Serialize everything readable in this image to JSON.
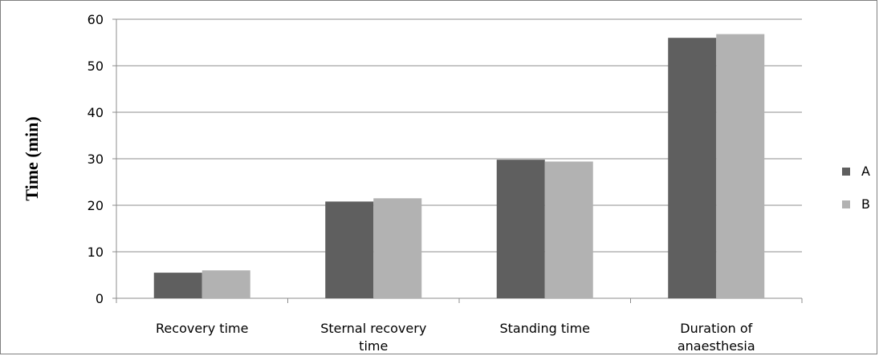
{
  "chart_data": {
    "type": "bar",
    "title": "",
    "xlabel": "",
    "ylabel": "Time (min)",
    "ylim": [
      0,
      60
    ],
    "yticks": [
      0,
      10,
      20,
      30,
      40,
      50,
      60
    ],
    "grid": true,
    "legend_position": "right",
    "categories": [
      [
        "Recovery time"
      ],
      [
        "Sternal recovery",
        "time"
      ],
      [
        "Standing time"
      ],
      [
        "Duration of",
        "anaesthesia"
      ]
    ],
    "series": [
      {
        "name": "A",
        "color": "#5f5f5f",
        "values": [
          5.5,
          20.8,
          29.8,
          56
        ]
      },
      {
        "name": "B",
        "color": "#b2b2b2",
        "values": [
          6.0,
          21.5,
          29.4,
          56.8
        ]
      }
    ]
  }
}
